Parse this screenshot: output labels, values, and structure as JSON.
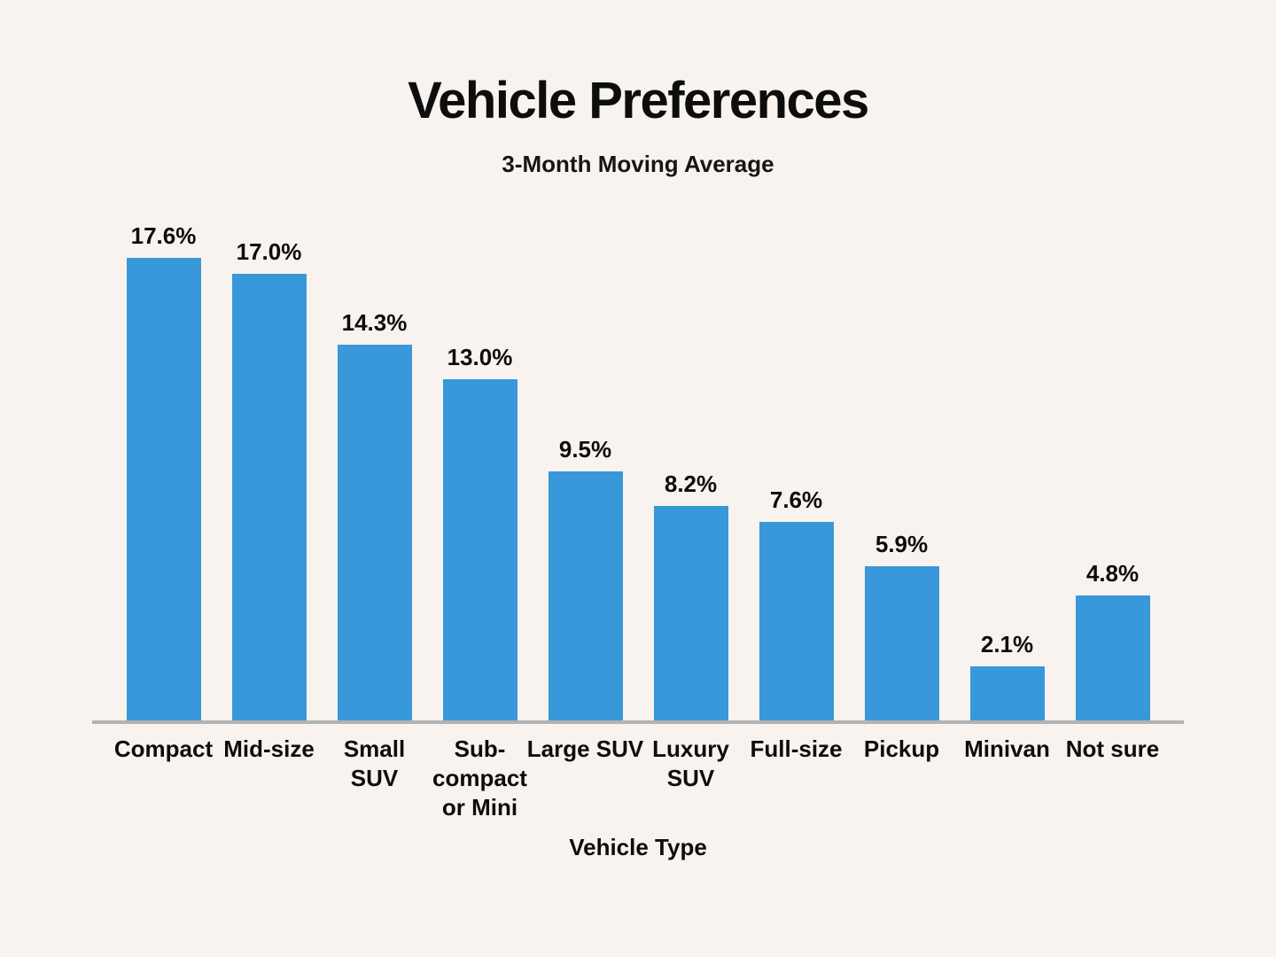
{
  "page": {
    "background_color": "#f8f3ee",
    "text_color": "#0d0d0d"
  },
  "chart_data": {
    "type": "bar",
    "title": "Vehicle Preferences",
    "subtitle": "3-Month Moving Average",
    "xlabel": "Vehicle Type",
    "ylabel": "",
    "categories": [
      "Compact",
      "Mid-size",
      "Small SUV",
      "Sub-compact or Mini",
      "Large SUV",
      "Luxury SUV",
      "Full-size",
      "Pickup",
      "Minivan",
      "Not sure"
    ],
    "tick_labels": [
      "Compact",
      "Mid-size",
      "Small\nSUV",
      "Sub-\ncompact\nor Mini",
      "Large SUV",
      "Luxury\nSUV",
      "Full-size",
      "Pickup",
      "Minivan",
      "Not sure"
    ],
    "values": [
      17.6,
      17.0,
      14.3,
      13.0,
      9.5,
      8.2,
      7.6,
      5.9,
      2.1,
      4.8
    ],
    "value_labels": [
      "17.6%",
      "17.0%",
      "14.3%",
      "13.0%",
      "9.5%",
      "8.2%",
      "7.6%",
      "5.9%",
      "2.1%",
      "4.8%"
    ],
    "ylim": [
      0,
      19.3
    ],
    "grid": false,
    "legend": false,
    "y_axis_ticks_visible": false,
    "bar_color": "#3898d9",
    "axis_line_color": "#b3b3b3"
  }
}
